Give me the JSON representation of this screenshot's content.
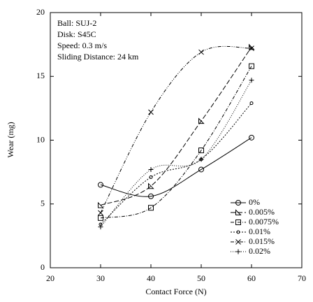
{
  "chart_data": {
    "type": "scatter-fit",
    "x_label": "Contact Force (N)",
    "y_label": "Wear (mg)",
    "annotations": [
      "Ball: SUJ-2",
      "Disk: S45C",
      "Speed: 0.3 m/s",
      "Sliding Distance: 24 km"
    ],
    "x": [
      30,
      40,
      50,
      60
    ],
    "xlim": [
      20,
      70
    ],
    "xticks": [
      20,
      30,
      40,
      50,
      60,
      70
    ],
    "ylim": [
      0,
      20
    ],
    "yticks": [
      0,
      5,
      10,
      15,
      20
    ],
    "legend": "lower right",
    "series": [
      {
        "name": "0%",
        "color": "#000000",
        "marker": "circle",
        "dash": "none",
        "values": [
          6.5,
          5.6,
          7.7,
          10.2
        ]
      },
      {
        "name": "0.005%",
        "color": "#000000",
        "marker": "triangle",
        "dash": "7 3",
        "values": [
          4.9,
          6.4,
          11.5,
          17.3
        ]
      },
      {
        "name": "0.0075%",
        "color": "#000000",
        "marker": "square",
        "dash": "5 2 1 2",
        "values": [
          3.9,
          4.7,
          9.2,
          15.8
        ]
      },
      {
        "name": "0.01%",
        "color": "#000000",
        "marker": "dot",
        "dash": "2 2",
        "values": [
          3.4,
          7.1,
          8.5,
          12.9
        ]
      },
      {
        "name": "0.015%",
        "color": "#000000",
        "marker": "x",
        "dash": "5 2 1 2 1 2",
        "values": [
          4.3,
          12.2,
          16.9,
          17.2
        ]
      },
      {
        "name": "0.02%",
        "color": "#000000",
        "marker": "plus",
        "dash": "1 2",
        "values": [
          3.2,
          7.7,
          8.5,
          14.7
        ]
      }
    ]
  }
}
